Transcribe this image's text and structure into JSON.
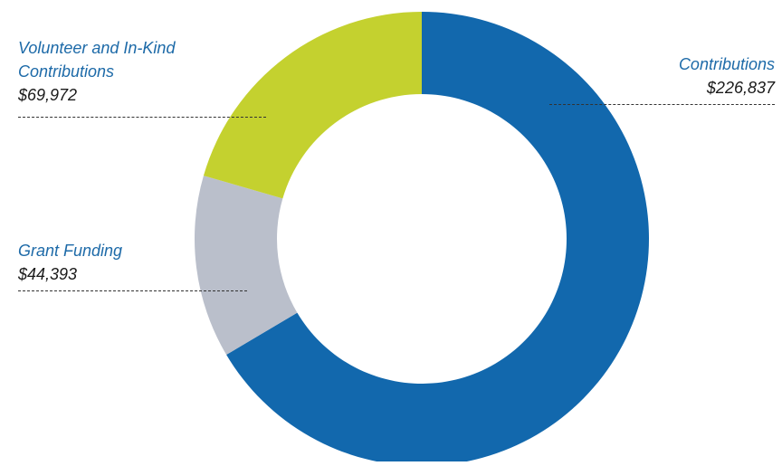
{
  "chart_data": {
    "type": "pie",
    "subtype": "donut",
    "slices": [
      {
        "label": "Contributions",
        "value": 226837,
        "display": "$226,837",
        "color": "#1268ad"
      },
      {
        "label": "Grant Funding",
        "value": 44393,
        "display": "$44,393",
        "color": "#babfcb"
      },
      {
        "label": "Volunteer and In-Kind Contributions",
        "label_lines": [
          "Volunteer and In-Kind",
          "Contributions"
        ],
        "value": 69972,
        "display": "$69,972",
        "color": "#c4d12f"
      }
    ],
    "start_angle": "12 o'clock",
    "direction": "clockwise",
    "legend": "none (direct labels)"
  },
  "colors": {
    "label_text": "#1d6aa8",
    "value_text": "#1a1a1a",
    "leader_line": "#333333"
  }
}
